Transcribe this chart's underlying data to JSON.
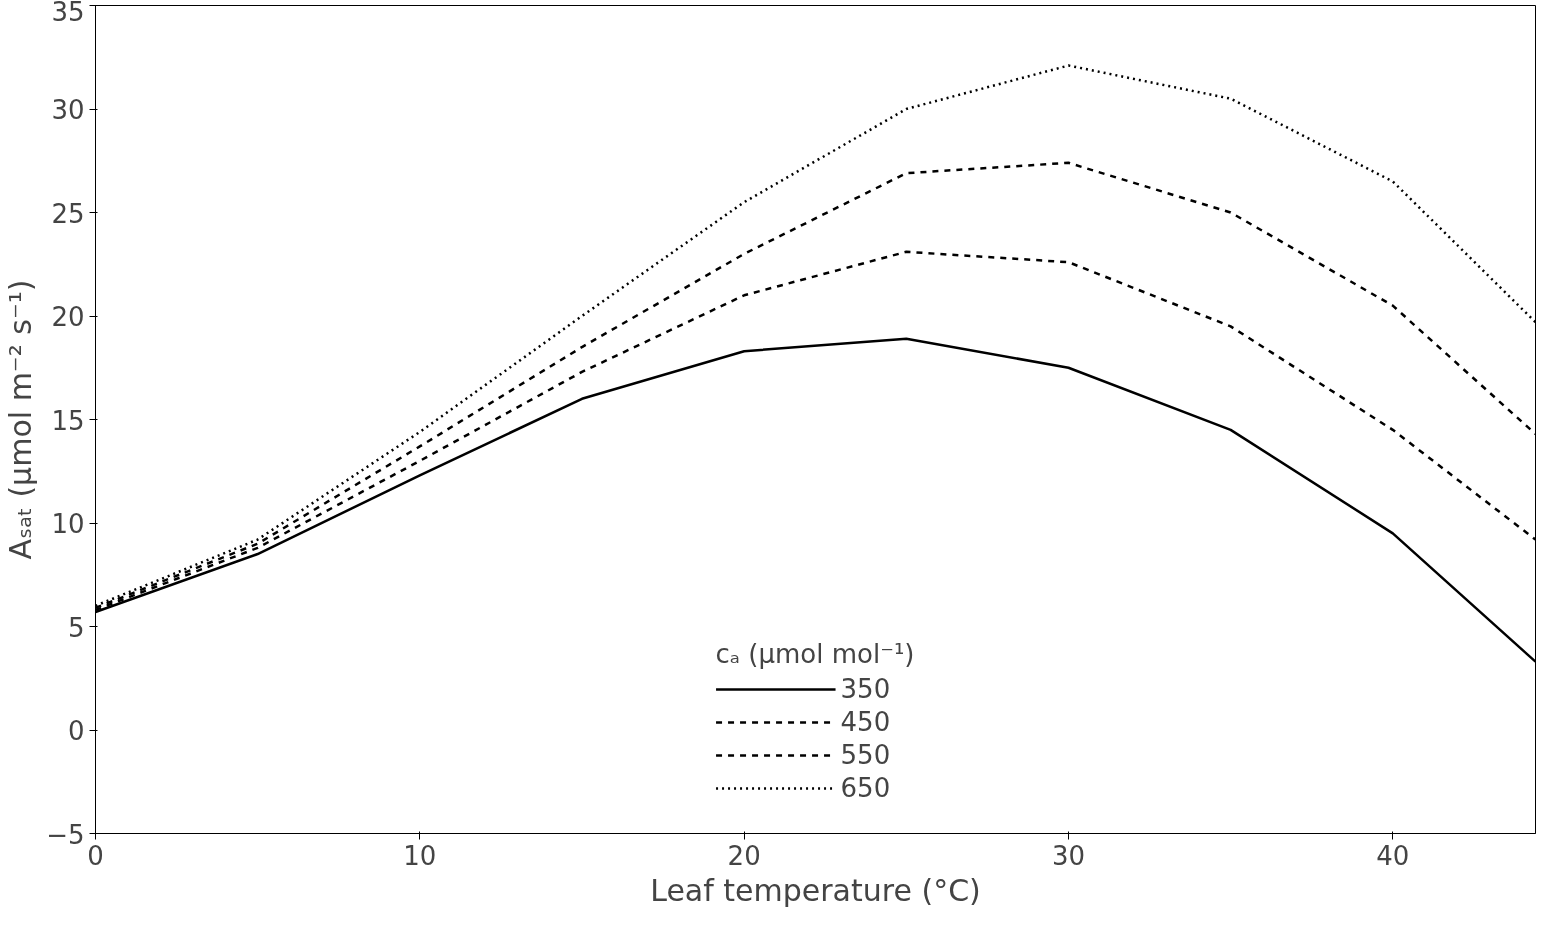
{
  "chart_data": {
    "type": "line",
    "xlabel": "Leaf temperature (°C)",
    "ylabel": "Aₛₐₜ (µmol m⁻² s⁻¹)",
    "legend_title": "cₐ (µmol mol⁻¹)",
    "x": [
      0,
      5,
      10,
      15,
      20,
      25,
      30,
      35,
      40,
      44.4
    ],
    "series": [
      {
        "name": "350",
        "color": "#000000",
        "line_style": "solid",
        "values": [
          5.7,
          8.5,
          12.3,
          16,
          18.3,
          18.9,
          17.5,
          14.5,
          9.5,
          3.3
        ]
      },
      {
        "name": "450",
        "color": "#000000",
        "line_style": "dashed",
        "values": [
          5.8,
          8.8,
          13,
          17.3,
          21,
          23.1,
          22.6,
          19.5,
          14.5,
          9.2
        ]
      },
      {
        "name": "550",
        "color": "#000000",
        "line_style": "dashed",
        "values": [
          5.9,
          9,
          13.7,
          18.5,
          23,
          26.9,
          27.4,
          25,
          20.5,
          14.3
        ]
      },
      {
        "name": "650",
        "color": "#000000",
        "line_style": "dotted",
        "values": [
          6,
          9.2,
          14.4,
          20,
          25.5,
          30,
          32.1,
          30.5,
          26.5,
          19.7
        ]
      }
    ],
    "xlim": [
      0,
      44.4
    ],
    "ylim": [
      -5,
      35
    ],
    "xticks": [
      0,
      10,
      20,
      30,
      40
    ],
    "yticks": [
      -5,
      0,
      5,
      10,
      15,
      20,
      25,
      30,
      35
    ],
    "grid": false,
    "legend": "bottom",
    "marker": "none"
  }
}
